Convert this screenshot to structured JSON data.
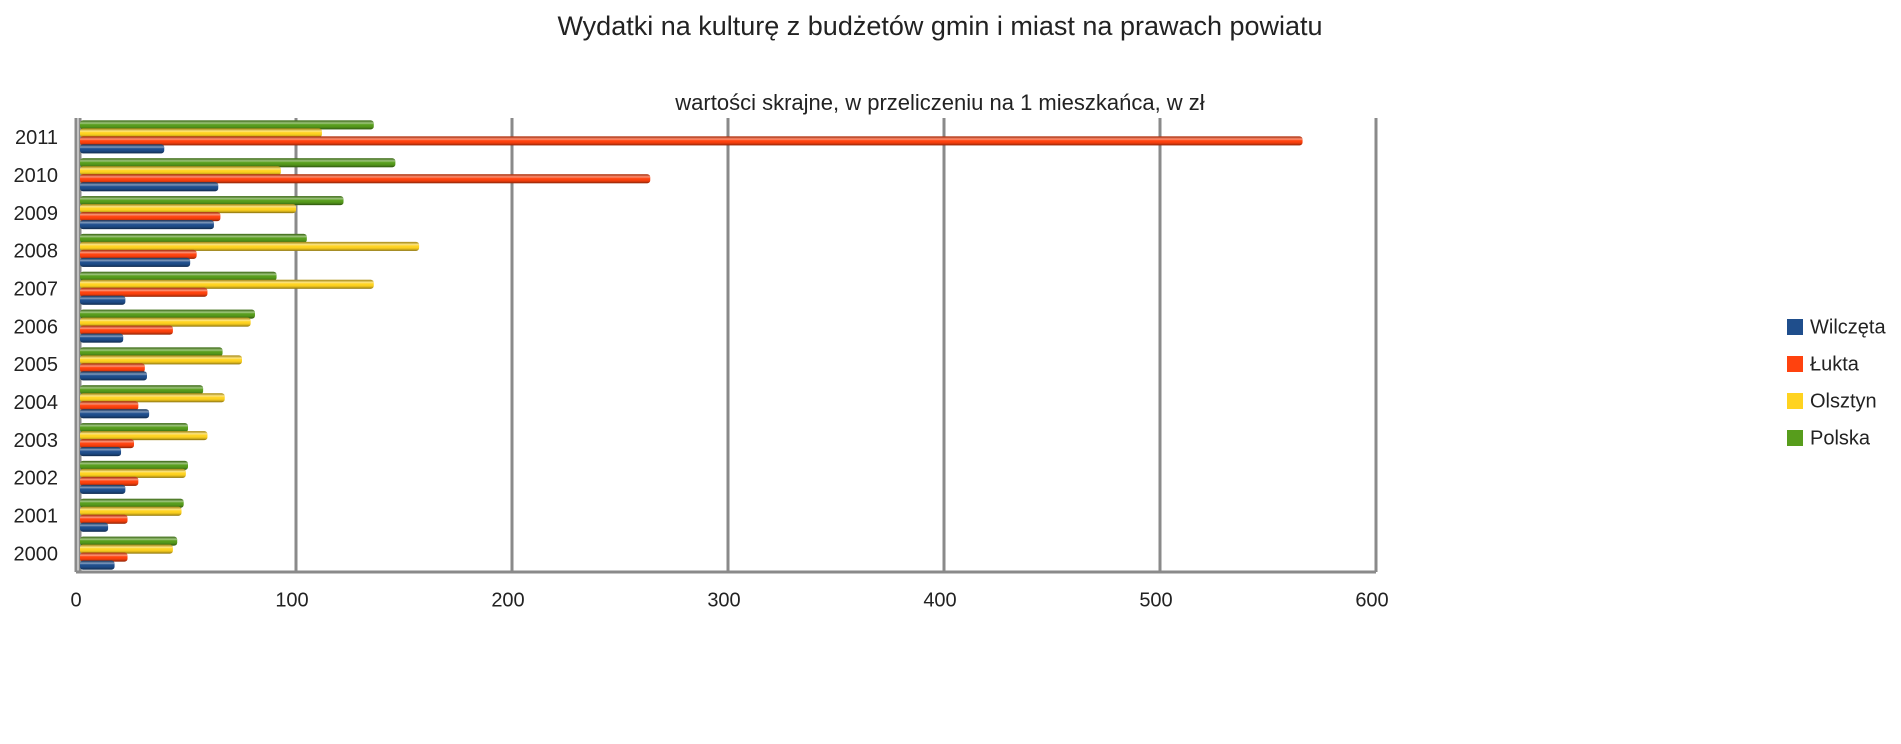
{
  "chart_data": {
    "type": "barh",
    "title": "Wydatki na kulturę z budżetów gmin i miast na prawach powiatu",
    "subtitle": "wartości skrajne, w przeliczeniu na 1 mieszkańca, w zł",
    "categories": [
      "2000",
      "2001",
      "2002",
      "2003",
      "2004",
      "2005",
      "2006",
      "2007",
      "2008",
      "2009",
      "2010",
      "2011"
    ],
    "series": [
      {
        "name": "Wilczęta",
        "color": "#1f4e8c",
        "values": [
          16,
          13,
          21,
          19,
          32,
          31,
          20,
          21,
          51,
          62,
          64,
          39
        ]
      },
      {
        "name": "Łukta",
        "color": "#ff420e",
        "values": [
          22,
          22,
          27,
          25,
          27,
          30,
          43,
          59,
          54,
          65,
          264,
          566
        ]
      },
      {
        "name": "Olsztyn",
        "color": "#ffd320",
        "values": [
          43,
          47,
          49,
          59,
          67,
          75,
          79,
          136,
          157,
          100,
          93,
          112
        ]
      },
      {
        "name": "Polska",
        "color": "#579d1c",
        "values": [
          45,
          48,
          50,
          50,
          57,
          66,
          81,
          91,
          105,
          122,
          146,
          136
        ]
      }
    ],
    "xlim": [
      0,
      600
    ],
    "xticks": [
      0,
      100,
      200,
      300,
      400,
      500,
      600
    ],
    "grid": true,
    "legend": "right"
  }
}
